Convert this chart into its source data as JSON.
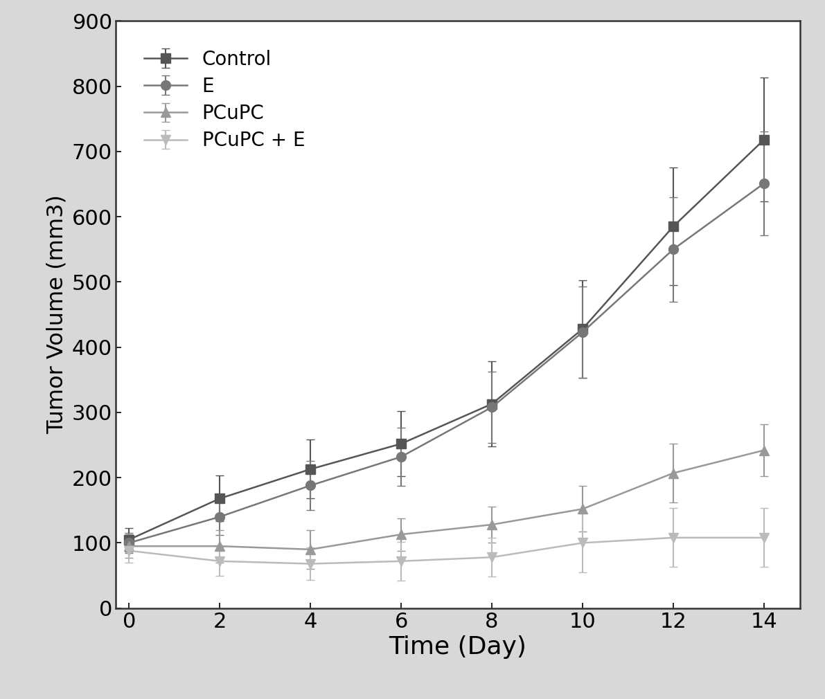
{
  "x": [
    0,
    2,
    4,
    6,
    8,
    10,
    12,
    14
  ],
  "series_order": [
    "Control",
    "E",
    "PCuPC",
    "PCuPC+E"
  ],
  "series": {
    "Control": {
      "y": [
        105,
        168,
        213,
        252,
        313,
        428,
        585,
        718
      ],
      "yerr": [
        18,
        35,
        45,
        50,
        65,
        75,
        90,
        95
      ],
      "color": "#555555",
      "marker": "s",
      "label": "Control"
    },
    "E": {
      "y": [
        100,
        140,
        188,
        232,
        308,
        423,
        550,
        651
      ],
      "yerr": [
        15,
        28,
        38,
        45,
        55,
        70,
        80,
        80
      ],
      "color": "#777777",
      "marker": "o",
      "label": "E"
    },
    "PCuPC": {
      "y": [
        95,
        95,
        90,
        113,
        128,
        152,
        207,
        242
      ],
      "yerr": [
        18,
        25,
        30,
        25,
        28,
        35,
        45,
        40
      ],
      "color": "#999999",
      "marker": "^",
      "label": "PCuPC"
    },
    "PCuPC+E": {
      "y": [
        88,
        72,
        68,
        72,
        78,
        100,
        108,
        108
      ],
      "yerr": [
        18,
        22,
        25,
        30,
        30,
        45,
        45,
        45
      ],
      "color": "#bbbbbb",
      "marker": "v",
      "label": "PCuPC + E"
    }
  },
  "xlabel": "Time (Day)",
  "ylabel": "Tumor Volume (mm3)",
  "xlim": [
    -0.3,
    14.8
  ],
  "ylim": [
    0,
    900
  ],
  "yticks": [
    0,
    100,
    200,
    300,
    400,
    500,
    600,
    700,
    800,
    900
  ],
  "xticks": [
    0,
    2,
    4,
    6,
    8,
    10,
    12,
    14
  ],
  "xlabel_fontsize": 26,
  "ylabel_fontsize": 23,
  "tick_fontsize": 22,
  "legend_fontsize": 20,
  "linewidth": 1.8,
  "markersize": 10,
  "capsize": 4,
  "elinewidth": 1.5,
  "figure_facecolor": "#d8d8d8",
  "axes_facecolor": "#ffffff"
}
